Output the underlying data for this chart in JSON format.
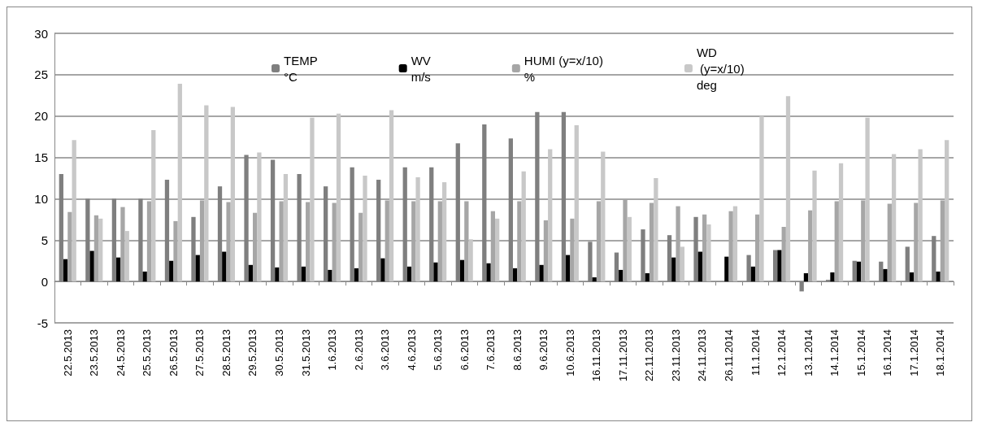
{
  "chart_data": {
    "type": "bar",
    "categories": [
      "22.5.2013",
      "23.5.2013",
      "24.5.2013",
      "25.5.2013",
      "26.5.2013",
      "27.5.2013",
      "28.5.2013",
      "29.5.2013",
      "30.5.2013",
      "31.5.2013",
      "1.6.2013",
      "2.6.2013",
      "3.6.2013",
      "4.6.2013",
      "5.6.2013",
      "6.6.2013",
      "7.6.2013",
      "8.6.2013",
      "9.6.2013",
      "10.6.2013",
      "16.11.2013",
      "17.11.2013",
      "22.11.2013",
      "23.11.2013",
      "24.11.2013",
      "26.11.2014",
      "11.1.2014",
      "12.1.2014",
      "13.1.2014",
      "14.1.2014",
      "15.1.2014",
      "16.1.2014",
      "17.1.2014",
      "18.1.2014"
    ],
    "series": [
      {
        "name": "TEMP\n°C",
        "color": "#7f7f7f",
        "values": [
          13,
          10,
          10,
          10,
          12.3,
          7.8,
          11.5,
          15.3,
          14.7,
          13,
          11.5,
          13.8,
          12.3,
          13.8,
          13.8,
          16.7,
          19,
          17.3,
          20.5,
          20.5,
          4.8,
          3.5,
          6.3,
          5.6,
          7.8,
          null,
          3.2,
          3.8,
          -1.2,
          0.2,
          2.5,
          2.4,
          4.2,
          5.5
        ]
      },
      {
        "name": "WV\nm/s",
        "color": "#000000",
        "values": [
          2.7,
          3.7,
          2.9,
          1.2,
          2.5,
          3.2,
          3.6,
          2,
          1.7,
          1.8,
          1.4,
          1.6,
          2.8,
          1.8,
          2.3,
          2.6,
          2.2,
          1.6,
          2,
          3.2,
          0.5,
          1.4,
          1,
          2.9,
          3.6,
          3,
          1.8,
          3.8,
          1,
          1.1,
          2.4,
          1.5,
          1.1,
          1.2
        ]
      },
      {
        "name": "HUMI (y=x/10)\n%",
        "color": "#a6a6a6",
        "values": [
          8.4,
          8,
          9,
          9.7,
          7.3,
          9.8,
          9.6,
          8.3,
          9.7,
          9.6,
          9.5,
          8.3,
          9.8,
          9.7,
          9.7,
          9.7,
          8.5,
          9.7,
          7.4,
          7.6,
          9.7,
          9.9,
          9.5,
          9.1,
          8.1,
          8.5,
          8.1,
          6.6,
          8.6,
          9.7,
          9.8,
          9.4,
          9.5,
          9.8
        ]
      },
      {
        "name": "WD\n (y=x/10)\ndeg",
        "color": "#c8c8c8",
        "values": [
          17.1,
          7.6,
          6.1,
          18.3,
          23.9,
          21.3,
          21.1,
          15.6,
          13,
          19.8,
          20.3,
          12.8,
          20.7,
          12.6,
          12,
          5.1,
          7.6,
          13.3,
          16,
          18.9,
          15.7,
          7.8,
          12.5,
          4.2,
          6.9,
          9.1,
          20,
          22.4,
          13.4,
          14.3,
          19.8,
          15.4,
          16,
          17.1
        ]
      }
    ],
    "ylim": [
      -5,
      30
    ],
    "yticks": [
      -5,
      0,
      5,
      10,
      15,
      20,
      25,
      30
    ],
    "grid": "y",
    "legend": "top right"
  }
}
